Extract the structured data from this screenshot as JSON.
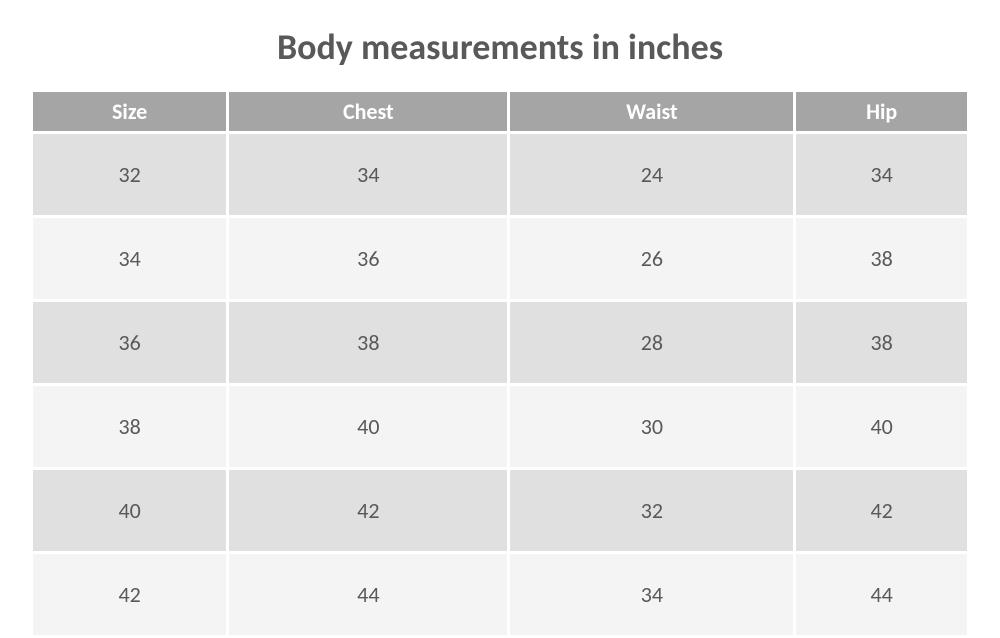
{
  "title": "Body measurements in inches",
  "table": {
    "type": "table",
    "columns": [
      "Size",
      "Chest",
      "Waist",
      "Hip"
    ],
    "rows": [
      [
        "32",
        "34",
        "24",
        "34"
      ],
      [
        "34",
        "36",
        "26",
        "38"
      ],
      [
        "36",
        "38",
        "28",
        "38"
      ],
      [
        "38",
        "40",
        "30",
        "40"
      ],
      [
        "40",
        "42",
        "32",
        "42"
      ],
      [
        "42",
        "44",
        "34",
        "44"
      ]
    ],
    "header_bg_color": "#a5a5a5",
    "header_text_color": "#ffffff",
    "row_odd_bg_color": "#e0e0e0",
    "row_even_bg_color": "#f4f4f4",
    "cell_text_color": "#595959",
    "title_color": "#595959",
    "title_fontsize": 36,
    "header_fontsize": 22,
    "cell_fontsize": 22,
    "column_count": 4,
    "cell_align": "center",
    "border_spacing": 3,
    "background_color": "#ffffff"
  }
}
